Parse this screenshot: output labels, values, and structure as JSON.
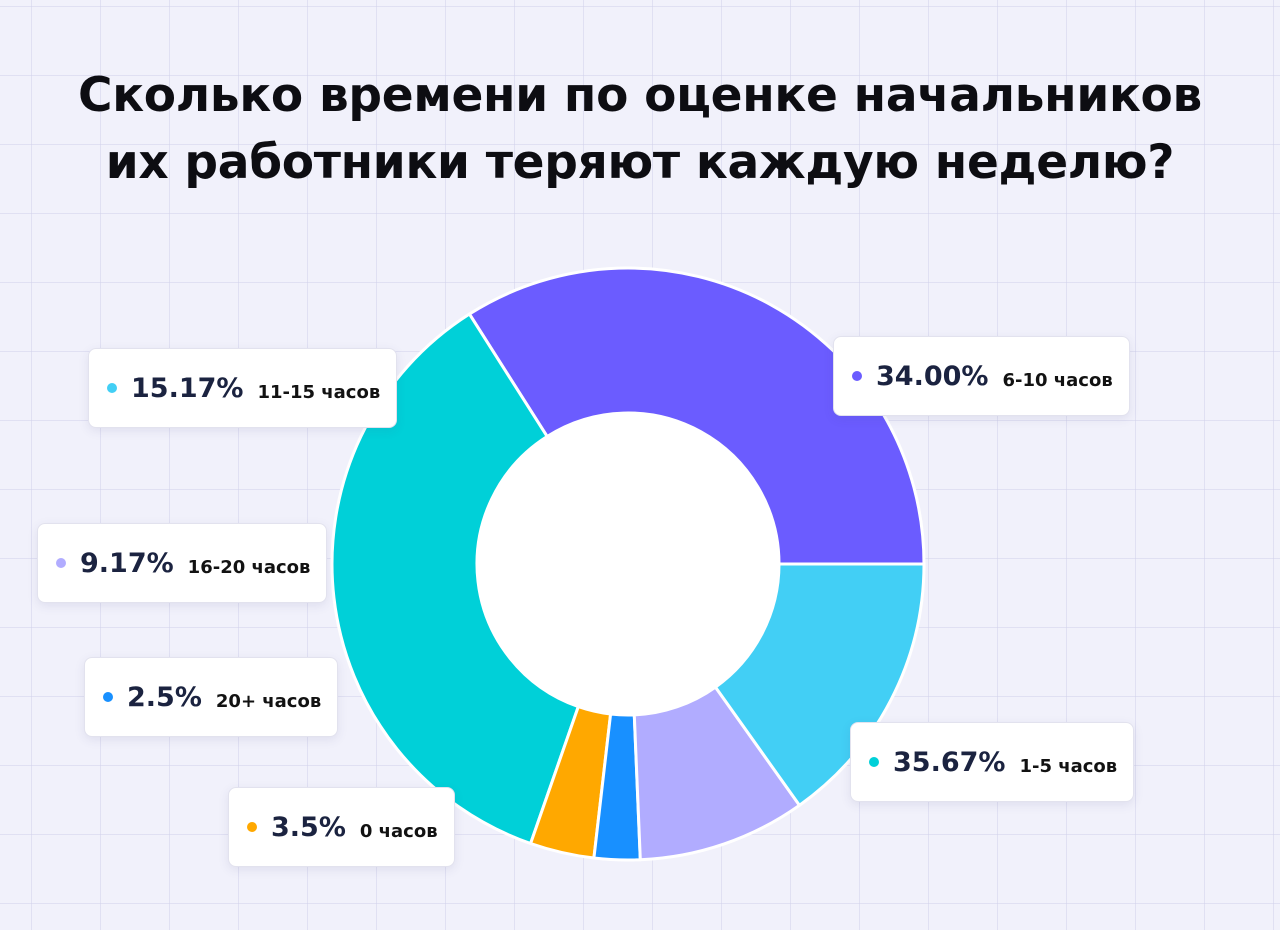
{
  "title_line1": "Сколько времени по оценке начальников",
  "title_line2": "их работники теряют каждую неделю?",
  "chart_data": {
    "type": "pie",
    "title": "Сколько времени по оценке начальников их работники теряют каждую неделю?",
    "slices": [
      {
        "label": "6-10 часов",
        "pct": "34.00%",
        "value": 34.0,
        "color": "#6b5cff"
      },
      {
        "label": "1-5 часов",
        "pct": "35.67%",
        "value": 35.67,
        "color": "#00d0d8"
      },
      {
        "label": "0 часов",
        "pct": "3.5%",
        "value": 3.5,
        "color": "#ffa800"
      },
      {
        "label": "20+ часов",
        "pct": "2.5%",
        "value": 2.5,
        "color": "#1890ff"
      },
      {
        "label": "16-20 часов",
        "pct": "9.17%",
        "value": 9.17,
        "color": "#b1acff"
      },
      {
        "label": "11-15 часов",
        "pct": "15.17%",
        "value": 15.17,
        "color": "#42cff5"
      }
    ]
  }
}
